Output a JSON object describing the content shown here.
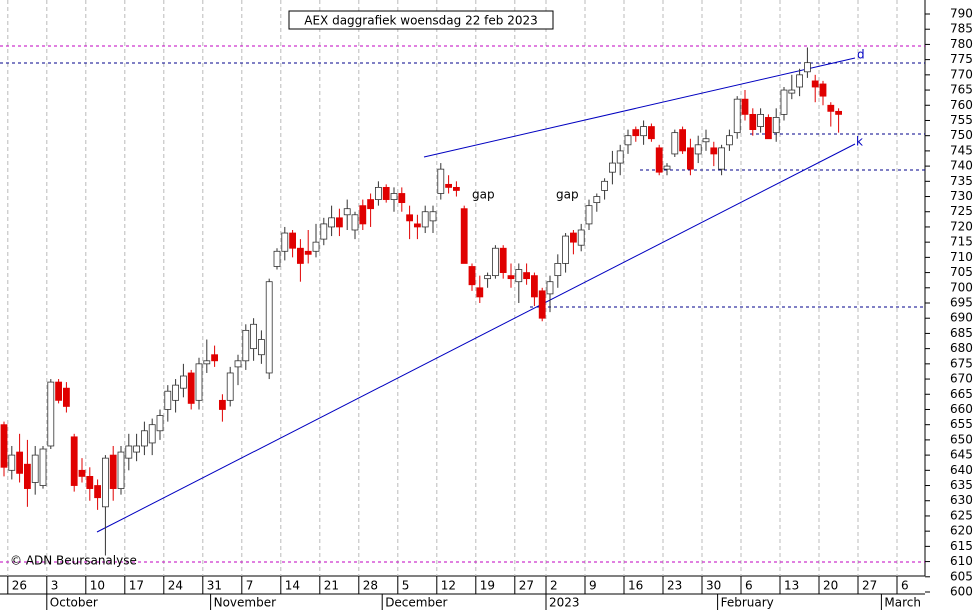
{
  "chart_data": {
    "type": "candlestick",
    "title": "AEX daggrafiek woensdag 22 feb 2023",
    "credit": "© ADN Beursanalyse",
    "annotations": {
      "gap1": "gap",
      "gap2": "gap",
      "d": "d",
      "k": "k"
    },
    "up_color": "#ffffff",
    "down_color": "#e00000",
    "ylim": [
      600,
      790
    ],
    "yticks": [
      600,
      605,
      610,
      615,
      620,
      625,
      630,
      635,
      640,
      645,
      650,
      655,
      660,
      665,
      670,
      675,
      680,
      685,
      690,
      695,
      700,
      705,
      710,
      715,
      720,
      725,
      730,
      735,
      740,
      745,
      750,
      755,
      760,
      765,
      770,
      775,
      780,
      785,
      790
    ],
    "xticks": [
      {
        "value": 1,
        "label": "26"
      },
      {
        "value": 6,
        "label": "3"
      },
      {
        "value": 11,
        "label": "10"
      },
      {
        "value": 16,
        "label": "17"
      },
      {
        "value": 21,
        "label": "24"
      },
      {
        "value": 26,
        "label": "31"
      },
      {
        "value": 31,
        "label": "7"
      },
      {
        "value": 36,
        "label": "14"
      },
      {
        "value": 41,
        "label": "21"
      },
      {
        "value": 46,
        "label": "28"
      },
      {
        "value": 51,
        "label": "5"
      },
      {
        "value": 56,
        "label": "12"
      },
      {
        "value": 61,
        "label": "19"
      },
      {
        "value": 66,
        "label": "27"
      },
      {
        "value": 70,
        "label": "2"
      },
      {
        "value": 75,
        "label": "9"
      },
      {
        "value": 80,
        "label": "16"
      },
      {
        "value": 85,
        "label": "23"
      },
      {
        "value": 90,
        "label": "30"
      },
      {
        "value": 95,
        "label": "6"
      },
      {
        "value": 100,
        "label": "13"
      },
      {
        "value": 105,
        "label": "20"
      },
      {
        "value": 110,
        "label": "27"
      },
      {
        "value": 115,
        "label": "6"
      }
    ],
    "months": [
      {
        "value": 6,
        "label": "October"
      },
      {
        "value": 27,
        "label": "November"
      },
      {
        "value": 49,
        "label": "December"
      },
      {
        "value": 70,
        "label": "2023"
      },
      {
        "value": 92,
        "label": "February"
      },
      {
        "value": 113,
        "label": "March"
      }
    ],
    "ohlc": [
      [
        655,
        656,
        638,
        641
      ],
      [
        640,
        648,
        637,
        645
      ],
      [
        646,
        652,
        636,
        639
      ],
      [
        642,
        650,
        628,
        634
      ],
      [
        636,
        648,
        632,
        645
      ],
      [
        635,
        648,
        634,
        647
      ],
      [
        648,
        670,
        647,
        669
      ],
      [
        669,
        670,
        662,
        663
      ],
      [
        667,
        669,
        659,
        661
      ],
      [
        651,
        652,
        633,
        635
      ],
      [
        640,
        644,
        636,
        638
      ],
      [
        638,
        641,
        630,
        634
      ],
      [
        635,
        637,
        627,
        631
      ],
      [
        628,
        645,
        612,
        644
      ],
      [
        645,
        648,
        630,
        634
      ],
      [
        634,
        648,
        632,
        646
      ],
      [
        644,
        652,
        640,
        648
      ],
      [
        646,
        652,
        643,
        648
      ],
      [
        648,
        656,
        645,
        653
      ],
      [
        649,
        657,
        645,
        655
      ],
      [
        653,
        660,
        650,
        658
      ],
      [
        660,
        668,
        656,
        666
      ],
      [
        663,
        670,
        659,
        668
      ],
      [
        667,
        675,
        664,
        671
      ],
      [
        672,
        673,
        660,
        662
      ],
      [
        663,
        677,
        660,
        675
      ],
      [
        675,
        683,
        672,
        676
      ],
      [
        678,
        681,
        674,
        676
      ],
      [
        663,
        665,
        656,
        660
      ],
      [
        663,
        674,
        661,
        672
      ],
      [
        674,
        678,
        668,
        676
      ],
      [
        676,
        688,
        673,
        686
      ],
      [
        680,
        690,
        676,
        688
      ],
      [
        678,
        686,
        675,
        683
      ],
      [
        672,
        703,
        670,
        702
      ],
      [
        707,
        713,
        706,
        712
      ],
      [
        712,
        720,
        709,
        718
      ],
      [
        718,
        719,
        710,
        713
      ],
      [
        713,
        716,
        702,
        708
      ],
      [
        712,
        719,
        708,
        711
      ],
      [
        712,
        721,
        710,
        715
      ],
      [
        716,
        723,
        714,
        721
      ],
      [
        720,
        727,
        717,
        723
      ],
      [
        723,
        726,
        717,
        720
      ],
      [
        724,
        729,
        719,
        726
      ],
      [
        719,
        725,
        716,
        724
      ],
      [
        727,
        729,
        719,
        721
      ],
      [
        729,
        731,
        720,
        726
      ],
      [
        729,
        735,
        727,
        733
      ],
      [
        733,
        734,
        728,
        729
      ],
      [
        729,
        733,
        725,
        731
      ],
      [
        731,
        733,
        725,
        728
      ],
      [
        724,
        727,
        716,
        722
      ],
      [
        721,
        724,
        716,
        720
      ],
      [
        720,
        727,
        718,
        725
      ],
      [
        722,
        727,
        718,
        725
      ],
      [
        731,
        741,
        729,
        739
      ],
      [
        734,
        737,
        731,
        733
      ],
      [
        733,
        735,
        730,
        732
      ],
      [
        726,
        727,
        708,
        708
      ],
      [
        707,
        708,
        699,
        701
      ],
      [
        700,
        704,
        695,
        697
      ],
      [
        703,
        705,
        700,
        704
      ],
      [
        704,
        714,
        703,
        713
      ],
      [
        713,
        714,
        703,
        705
      ],
      [
        704,
        708,
        700,
        703
      ],
      [
        702,
        708,
        695,
        706
      ],
      [
        705,
        708,
        701,
        703
      ],
      [
        704,
        705,
        694,
        697
      ],
      [
        699,
        700,
        689,
        690
      ],
      [
        698,
        704,
        692,
        702
      ],
      [
        704,
        711,
        700,
        708
      ],
      [
        708,
        718,
        705,
        717
      ],
      [
        718,
        719,
        711,
        715
      ],
      [
        714,
        721,
        712,
        719
      ],
      [
        721,
        729,
        719,
        727
      ],
      [
        728,
        731,
        725,
        730
      ],
      [
        732,
        736,
        729,
        735
      ],
      [
        738,
        745,
        734,
        741
      ],
      [
        741,
        747,
        737,
        745
      ],
      [
        747,
        752,
        744,
        750
      ],
      [
        752,
        753,
        748,
        750
      ],
      [
        750,
        755,
        747,
        753
      ],
      [
        753,
        754,
        748,
        749
      ],
      [
        746,
        747,
        737,
        738
      ],
      [
        739,
        741,
        737,
        740
      ],
      [
        744,
        752,
        743,
        751
      ],
      [
        752,
        753,
        744,
        745
      ],
      [
        746,
        749,
        737,
        739
      ],
      [
        744,
        750,
        741,
        747
      ],
      [
        748,
        752,
        745,
        749
      ],
      [
        746,
        748,
        740,
        744
      ],
      [
        739,
        747,
        737,
        746
      ],
      [
        747,
        752,
        745,
        750
      ],
      [
        751,
        763,
        749,
        762
      ],
      [
        762,
        765,
        755,
        757
      ],
      [
        757,
        759,
        750,
        752
      ],
      [
        753,
        759,
        751,
        757
      ],
      [
        756,
        757,
        749,
        749
      ],
      [
        751,
        759,
        748,
        756
      ],
      [
        757,
        766,
        755,
        765
      ],
      [
        764,
        770,
        762,
        765
      ],
      [
        766,
        772,
        763,
        770
      ],
      [
        771,
        779,
        769,
        774
      ],
      [
        768,
        770,
        761,
        766
      ],
      [
        767,
        768,
        760,
        763
      ],
      [
        760,
        761,
        753,
        758
      ],
      [
        758,
        759,
        751,
        757
      ]
    ]
  }
}
